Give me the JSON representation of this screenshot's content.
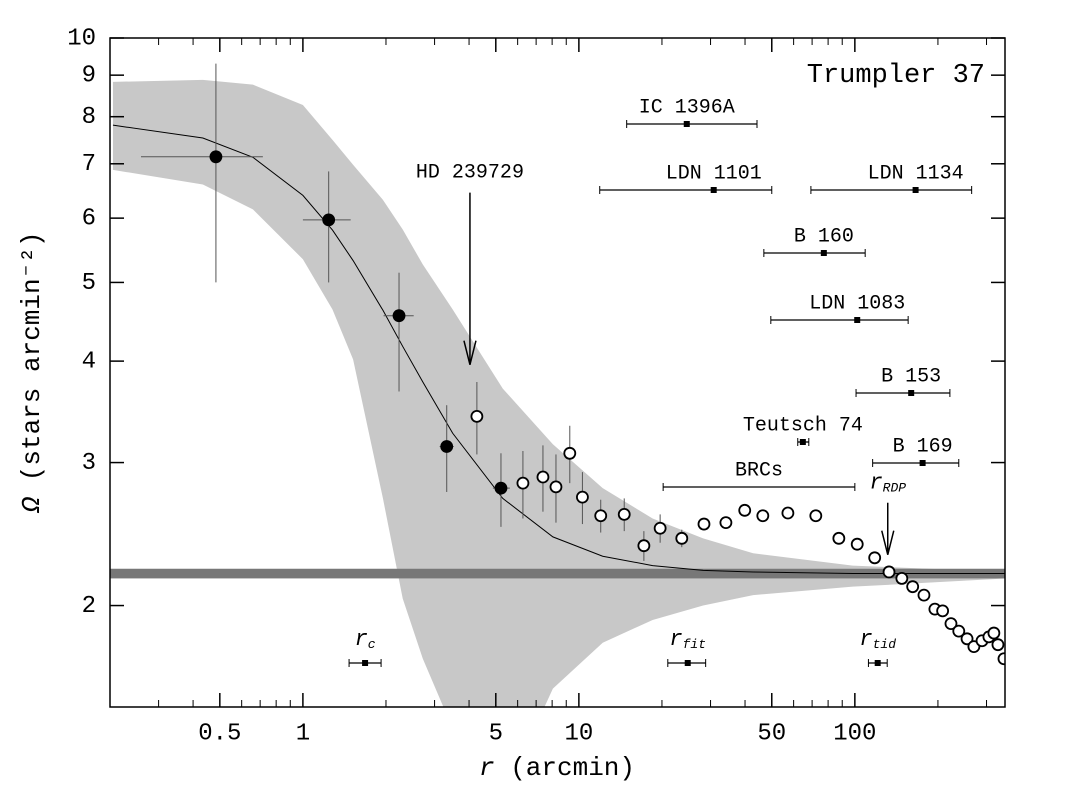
{
  "chart_data": {
    "type": "scatter",
    "title": "Trumpler 37",
    "xlabel": {
      "symbol": "r",
      "text": "(arcmin)"
    },
    "ylabel": {
      "symbol": "Ω",
      "text": "(stars arcmin⁻²)"
    },
    "xscale": "log",
    "yscale": "log",
    "xlim": [
      0.2,
      350
    ],
    "ylim": [
      1.5,
      10
    ],
    "xticks": [
      0.5,
      1,
      5,
      10,
      50,
      100
    ],
    "xminor": [
      0.3,
      0.4,
      0.6,
      0.7,
      0.8,
      0.9,
      2,
      3,
      4,
      6,
      7,
      8,
      9,
      20,
      30,
      40,
      60,
      70,
      80,
      90,
      200,
      300
    ],
    "yticks": [
      2,
      3,
      4,
      5,
      6,
      7,
      8,
      9,
      10
    ],
    "band": {
      "color": "#c8c8c8",
      "x": [
        0.205,
        0.434,
        0.659,
        1,
        1.28,
        1.52,
        1.95,
        2.3,
        2.72,
        3.49,
        5.3,
        8.05,
        12.2,
        18.5,
        28.2,
        42.8,
        98.3,
        358
      ],
      "upper": [
        8.83,
        8.88,
        8.76,
        8.27,
        7.49,
        6.98,
        6.32,
        5.81,
        5.26,
        4.63,
        3.7,
        3.16,
        2.79,
        2.56,
        2.42,
        2.32,
        2.24,
        2.2
      ],
      "lower": [
        6.88,
        6.6,
        6.15,
        5.34,
        4.63,
        4.02,
        2.71,
        2.04,
        1.72,
        1.41,
        1.16,
        1.58,
        1.8,
        1.92,
        2.0,
        2.06,
        2.11,
        2.16
      ]
    },
    "background": {
      "value": 2.19,
      "err": 0.03,
      "color": "#777777"
    },
    "model": {
      "color": "#000000",
      "x": [
        0.205,
        0.434,
        0.659,
        1,
        1.28,
        1.52,
        1.95,
        2.3,
        2.72,
        3.49,
        5.3,
        8.05,
        12.2,
        18.5,
        28.2,
        42.8,
        98.3,
        358
      ],
      "y": [
        7.81,
        7.53,
        7.13,
        6.4,
        5.8,
        5.32,
        4.62,
        4.17,
        3.77,
        3.26,
        2.71,
        2.43,
        2.3,
        2.24,
        2.21,
        2.2,
        2.19,
        2.19
      ]
    },
    "series": [
      {
        "color": "#000000",
        "x": [
          0.484,
          1.24,
          2.23,
          3.32,
          5.22
        ],
        "y": [
          7.14,
          5.97,
          4.55,
          3.14,
          2.79
        ],
        "xlow": [
          0.259,
          1.0,
          1.96,
          3.13,
          4.88
        ],
        "xhigh": [
          0.716,
          1.49,
          2.52,
          3.52,
          5.62
        ],
        "ylow": [
          5.0,
          5.0,
          3.67,
          2.76,
          2.5
        ],
        "yhigh": [
          9.3,
          6.85,
          5.14,
          3.53,
          3.08
        ]
      },
      {
        "color": "#ffffff",
        "x": [
          4.27,
          6.27,
          7.41,
          8.26,
          9.27,
          10.3,
          12.0,
          14.6,
          17.2,
          19.7,
          23.6,
          28.4,
          34.1,
          39.9,
          46.4,
          57.2,
          72.2,
          87.5,
          102,
          118,
          133,
          148,
          162,
          178,
          195,
          208,
          223,
          238,
          255,
          270,
          289,
          306,
          319,
          330,
          347
        ],
        "y": [
          3.42,
          2.83,
          2.88,
          2.8,
          3.08,
          2.72,
          2.58,
          2.59,
          2.37,
          2.49,
          2.42,
          2.52,
          2.53,
          2.62,
          2.58,
          2.6,
          2.58,
          2.42,
          2.38,
          2.29,
          2.2,
          2.16,
          2.11,
          2.06,
          1.98,
          1.97,
          1.9,
          1.86,
          1.82,
          1.78,
          1.81,
          1.83,
          1.85,
          1.79,
          1.72
        ],
        "ylow": [
          3.07,
          2.56,
          2.61,
          2.53,
          2.83,
          2.52,
          2.46,
          2.47,
          2.27,
          2.39,
          2.36,
          null,
          null,
          null,
          null,
          null,
          null,
          null,
          null,
          null,
          null,
          null,
          null,
          null,
          null,
          null,
          null,
          null,
          null,
          null,
          null,
          null,
          null,
          null,
          null
        ],
        "yhigh": [
          3.77,
          3.1,
          3.15,
          3.07,
          3.33,
          2.92,
          2.7,
          2.71,
          2.47,
          2.59,
          2.48,
          null,
          null,
          null,
          null,
          null,
          null,
          null,
          null,
          null,
          null,
          null,
          null,
          null,
          null,
          null,
          null,
          null,
          null,
          null,
          null,
          null,
          null,
          null,
          null
        ]
      }
    ],
    "ranges": [
      {
        "label": "IC 1396A",
        "center": 24.6,
        "low": 14.9,
        "high": 44.2
      },
      {
        "label": "LDN 1101",
        "center": 30.8,
        "low": 11.9,
        "high": 50.0
      },
      {
        "label": "LDN 1134",
        "center": 166,
        "low": 69.3,
        "high": 265
      },
      {
        "label": "B 160",
        "center": 77.2,
        "low": 46.8,
        "high": 109
      },
      {
        "label": "LDN 1083",
        "center": 102,
        "low": 49.6,
        "high": 156
      },
      {
        "label": "B 153",
        "center": 160,
        "low": 101,
        "high": 221
      },
      {
        "label": "Teutsch 74",
        "center": 64.8,
        "low": 62.1,
        "high": 68.1
      },
      {
        "label": "B 169",
        "center": 176,
        "low": 116,
        "high": 238
      },
      {
        "label": "BRCs",
        "low": 20.2,
        "high": 100
      }
    ],
    "radii": [
      {
        "symbol": "r",
        "sub": "c",
        "center": 1.68,
        "low": 1.47,
        "high": 1.92
      },
      {
        "symbol": "r",
        "sub": "fit",
        "center": 24.8,
        "low": 21.0,
        "high": 28.8
      },
      {
        "symbol": "r",
        "sub": "tid",
        "center": 121,
        "low": 112,
        "high": 131
      }
    ],
    "arrows": [
      {
        "label": "HD 239729",
        "x": 4.03,
        "y": 3.96
      },
      {
        "symbol": "r",
        "sub": "RDP",
        "x": 131.6,
        "y": 2.31
      }
    ]
  }
}
